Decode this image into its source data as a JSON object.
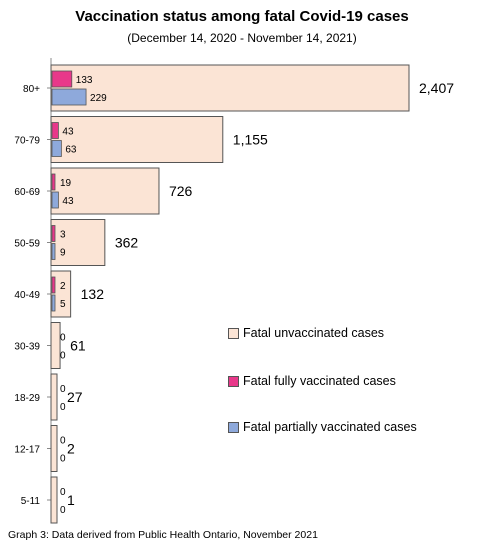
{
  "title": "Vaccination status among fatal Covid-19 cases",
  "subtitle": "(December 14, 2020 - November 14, 2021)",
  "caption": "Graph 3: Data derived from Public Health Ontario, November 2021",
  "chart_data": {
    "type": "bar",
    "orientation": "horizontal",
    "categories": [
      "80+",
      "70-79",
      "60-69",
      "50-59",
      "40-49",
      "30-39",
      "18-29",
      "12-17",
      "5-11"
    ],
    "series": [
      {
        "name": "Fatal unvaccinated cases",
        "color": "#fbe4d5",
        "values": [
          2407,
          1155,
          726,
          362,
          132,
          61,
          27,
          2,
          1
        ]
      },
      {
        "name": "Fatal fully vaccinated cases",
        "color": "#e8388a",
        "values": [
          133,
          43,
          19,
          3,
          2,
          0,
          0,
          0,
          0
        ]
      },
      {
        "name": "Fatal partially vaccinated cases",
        "color": "#8ea9db",
        "values": [
          229,
          63,
          43,
          9,
          5,
          0,
          0,
          0,
          0
        ]
      }
    ],
    "value_labels_unvaccinated": [
      "2,407",
      "1,155",
      "726",
      "362",
      "132",
      "61",
      "27",
      "2",
      "1"
    ],
    "legend_position": "right",
    "grid": false
  }
}
